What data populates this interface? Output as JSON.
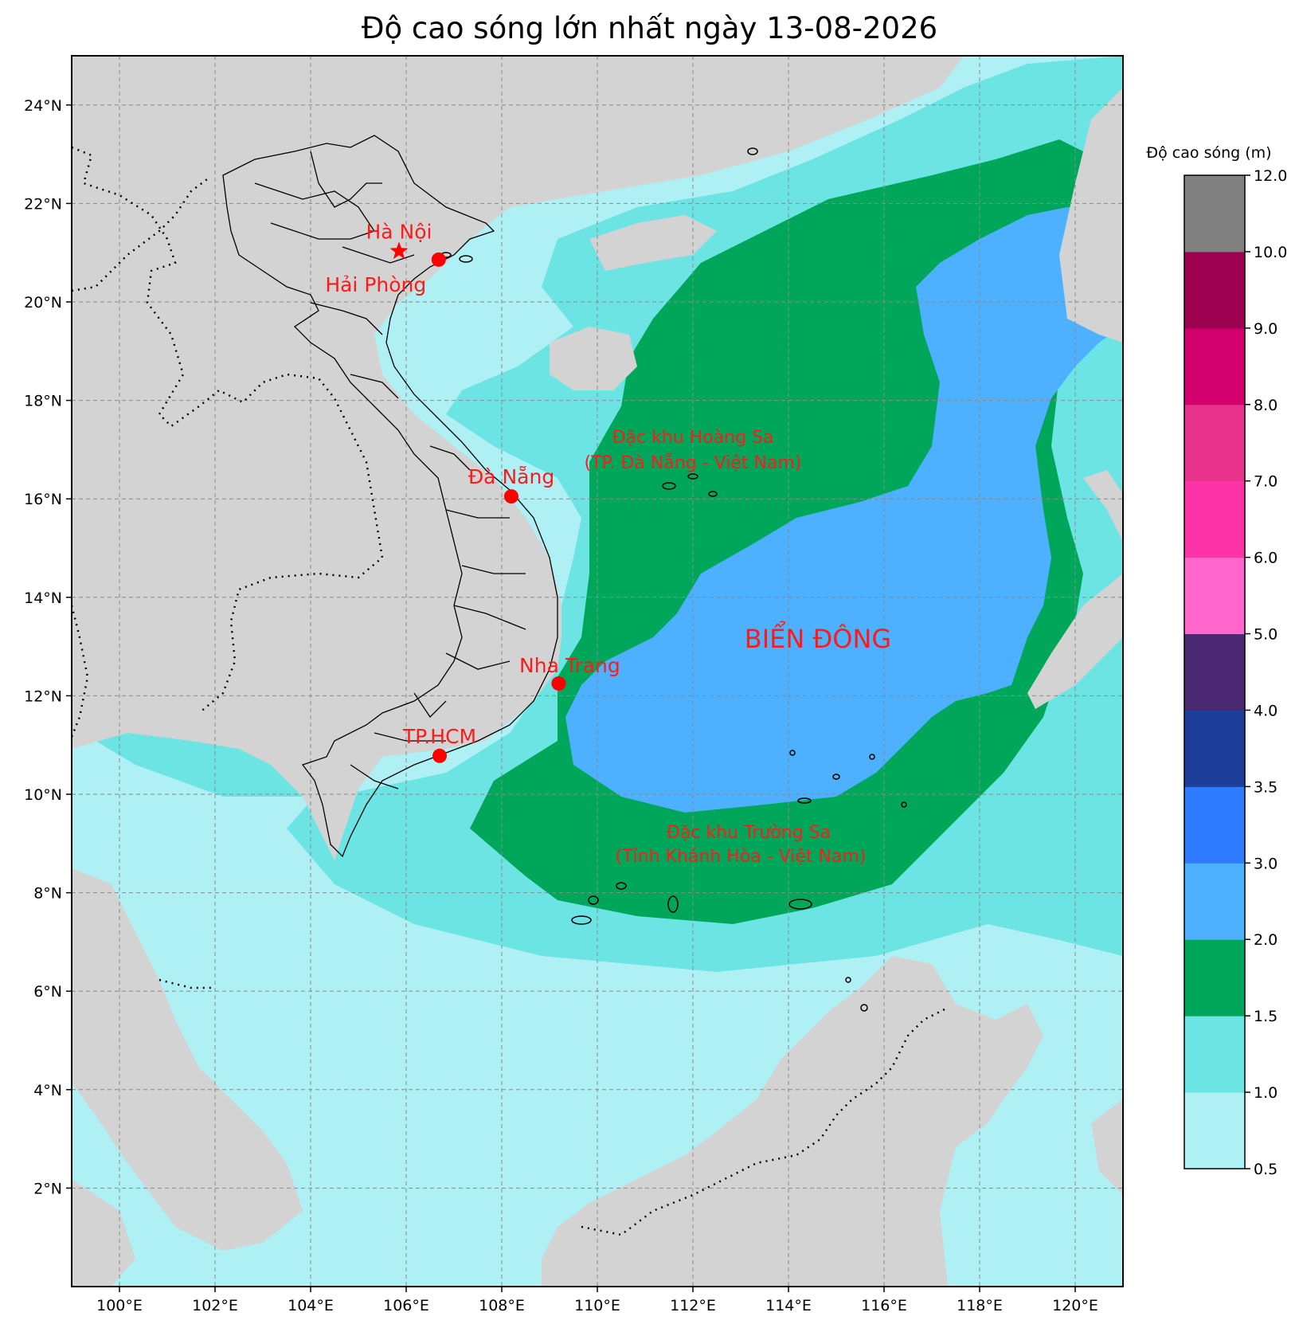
{
  "title": "Độ cao sóng lớn nhất ngày 13-08-2026",
  "map": {
    "lon_range": [
      99,
      121
    ],
    "lat_range": [
      0,
      25
    ],
    "lon_ticks": [
      "100°E",
      "102°E",
      "104°E",
      "106°E",
      "108°E",
      "110°E",
      "112°E",
      "114°E",
      "116°E",
      "118°E",
      "120°E"
    ],
    "lat_ticks": [
      "2°N",
      "4°N",
      "6°N",
      "8°N",
      "10°N",
      "12°N",
      "14°N",
      "16°N",
      "18°N",
      "20°N",
      "22°N",
      "24°N"
    ],
    "gridlines": true,
    "colors": {
      "land": "#d3d3d3",
      "wave_0_5_1": "#aff0f5",
      "wave_1_1_5": "#6ce4e4",
      "wave_1_5_2": "#00a65a",
      "wave_2_3": "#4db1ff"
    },
    "cities": [
      {
        "name": "Hà Nội",
        "lon": 105.85,
        "lat": 21.03,
        "marker": "star"
      },
      {
        "name": "Hải Phòng",
        "lon": 106.68,
        "lat": 20.86,
        "marker": "dot"
      },
      {
        "name": "Đà Nẵng",
        "lon": 108.2,
        "lat": 16.05,
        "marker": "dot"
      },
      {
        "name": "Nha Trang",
        "lon": 109.19,
        "lat": 12.25,
        "marker": "dot"
      },
      {
        "name": "TP.HCM",
        "lon": 106.7,
        "lat": 10.78,
        "marker": "dot"
      }
    ],
    "labels": {
      "hoang_sa_1": "Đặc khu Hoàng Sa",
      "hoang_sa_2": "(TP. Đà Nẵng - Việt Nam)",
      "truong_sa_1": "Đặc khu Trường Sa",
      "truong_sa_2": "(Tỉnh Khánh Hòa - Việt Nam)",
      "sea": "BIỂN ĐÔNG"
    }
  },
  "colorbar": {
    "title": "Độ cao sóng (m)",
    "levels": [
      "0.5",
      "1.0",
      "1.5",
      "2.0",
      "3.0",
      "3.5",
      "4.0",
      "5.0",
      "6.0",
      "7.0",
      "8.0",
      "9.0",
      "10.0",
      "12.0"
    ],
    "colors": [
      "#aff0f5",
      "#6ce4e4",
      "#00a65a",
      "#4db1ff",
      "#2e7bff",
      "#1f3e9c",
      "#4a2872",
      "#ff66cc",
      "#ff33a8",
      "#e8338c",
      "#d1006c",
      "#9c004f",
      "#808080"
    ]
  }
}
